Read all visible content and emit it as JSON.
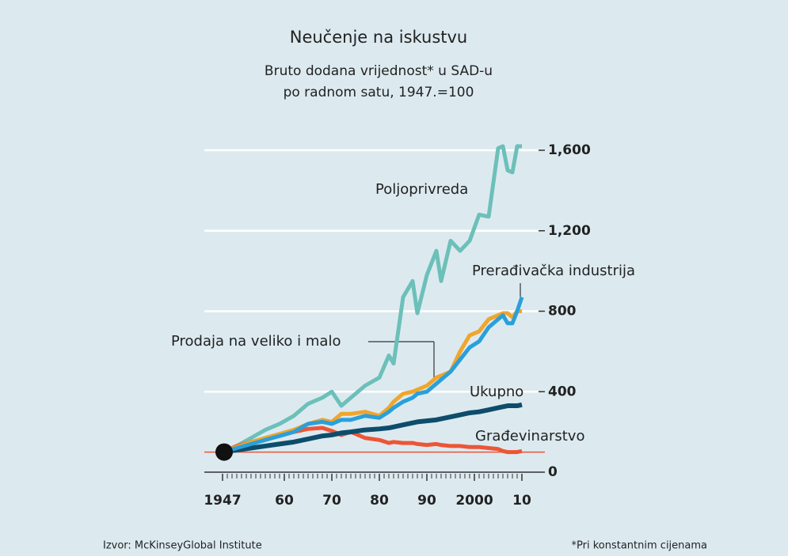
{
  "chart_data": {
    "type": "line",
    "title": "Neučenje na iskustvu",
    "subtitle": [
      "Bruto dodana vrijednost* u SAD-u",
      "po radnom satu, 1947.=100"
    ],
    "source": "Izvor: McKinseyGlobal Institute",
    "note": "*Pri konstantnim cijenama",
    "x": [
      1947,
      1950,
      1953,
      1956,
      1959,
      1962,
      1965,
      1968,
      1970,
      1972,
      1974,
      1977,
      1980,
      1982,
      1983,
      1985,
      1987,
      1988,
      1990,
      1992,
      1993,
      1995,
      1997,
      1999,
      2001,
      2003,
      2005,
      2006,
      2007,
      2008,
      2009,
      2010
    ],
    "series": [
      {
        "name": "Poljoprivreda",
        "color": "#6cc0b9",
        "values": [
          100,
          130,
          170,
          210,
          240,
          280,
          340,
          370,
          400,
          330,
          370,
          430,
          470,
          580,
          540,
          870,
          950,
          790,
          980,
          1100,
          950,
          1150,
          1100,
          1150,
          1280,
          1270,
          1610,
          1620,
          1500,
          1490,
          1620,
          1620
        ]
      },
      {
        "name": "Prodaja na veliko i malo",
        "color": "#f0a52c",
        "values": [
          100,
          125,
          150,
          170,
          190,
          210,
          240,
          260,
          250,
          290,
          290,
          300,
          280,
          320,
          350,
          390,
          400,
          410,
          430,
          470,
          480,
          500,
          600,
          680,
          700,
          760,
          780,
          790,
          790,
          770,
          800,
          800
        ]
      },
      {
        "name": "Prerađivačka industrija",
        "color": "#2aa0da",
        "values": [
          100,
          120,
          140,
          160,
          180,
          200,
          240,
          250,
          240,
          260,
          260,
          280,
          270,
          300,
          320,
          350,
          370,
          390,
          400,
          440,
          460,
          500,
          560,
          620,
          650,
          720,
          760,
          780,
          740,
          740,
          800,
          870
        ]
      },
      {
        "name": "Ukupno",
        "color": "#0d4d6b",
        "values": [
          100,
          110,
          120,
          130,
          140,
          150,
          165,
          180,
          185,
          195,
          200,
          210,
          215,
          220,
          225,
          235,
          245,
          250,
          255,
          260,
          265,
          275,
          285,
          295,
          300,
          310,
          320,
          325,
          330,
          330,
          330,
          335
        ]
      },
      {
        "name": "Građevinarstvo",
        "color": "#ee5535",
        "values": [
          100,
          130,
          150,
          165,
          180,
          200,
          215,
          220,
          205,
          185,
          200,
          170,
          160,
          145,
          150,
          145,
          145,
          140,
          135,
          140,
          135,
          130,
          130,
          125,
          125,
          120,
          115,
          105,
          100,
          100,
          100,
          105
        ]
      }
    ],
    "baseline": 100,
    "xlim": [
      1947,
      2010
    ],
    "xticks": [
      1947,
      {
        "value": 1960,
        "label": "60"
      },
      {
        "value": 1970,
        "label": "70"
      },
      {
        "value": 1980,
        "label": "80"
      },
      {
        "value": 1990,
        "label": "90"
      },
      2000,
      {
        "value": 2010,
        "label": "10"
      }
    ],
    "ylim": [
      0,
      1600
    ],
    "yticks": [
      0,
      {
        "value": 400,
        "label": "400"
      },
      {
        "value": 800,
        "label": "800"
      },
      {
        "value": 1200,
        "label": "1,200"
      },
      {
        "value": 1600,
        "label": "1,600"
      }
    ],
    "grid": true
  }
}
